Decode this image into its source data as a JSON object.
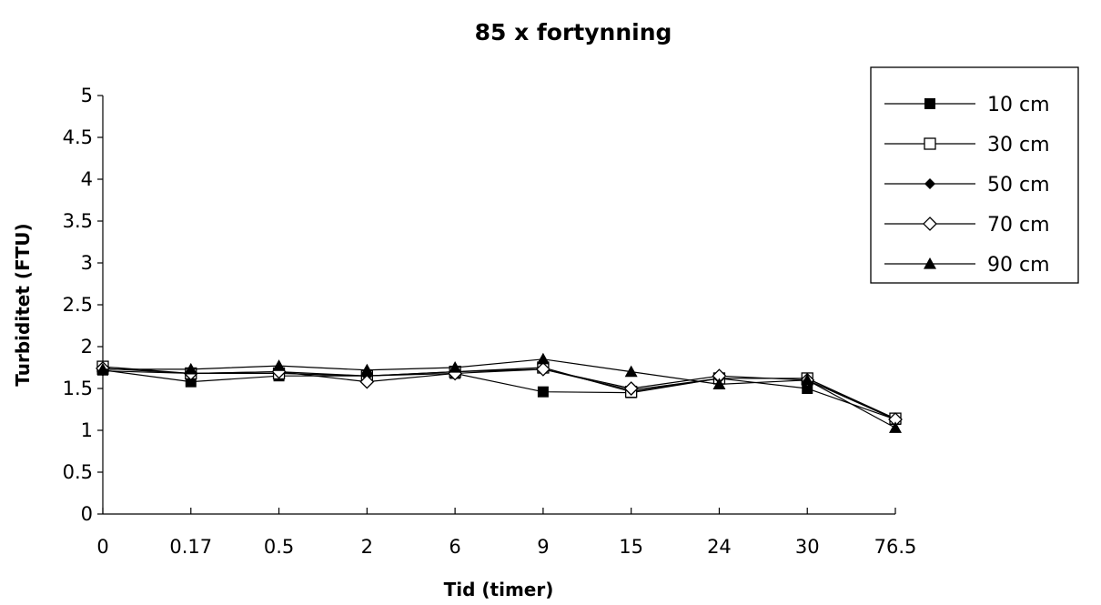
{
  "chart_data": {
    "type": "line",
    "title": "85 x fortynning",
    "xlabel": "Tid (timer)",
    "ylabel": "Turbiditet (FTU)",
    "categories": [
      "0",
      "0.17",
      "0.5",
      "2",
      "6",
      "9",
      "15",
      "24",
      "30",
      "76.5"
    ],
    "yticks": [
      "0",
      "0.5",
      "1",
      "1.5",
      "2",
      "2.5",
      "3",
      "3.5",
      "4",
      "4.5",
      "5"
    ],
    "ylim": [
      0,
      5
    ],
    "grid": false,
    "legend_position": "top-right",
    "series": [
      {
        "name": "10 cm",
        "marker": "square-filled",
        "values": [
          1.72,
          1.58,
          1.65,
          1.65,
          1.68,
          1.46,
          1.45,
          1.62,
          1.5,
          1.13
        ]
      },
      {
        "name": "30 cm",
        "marker": "square-open",
        "values": [
          1.76,
          1.68,
          1.68,
          1.65,
          1.7,
          1.75,
          1.46,
          1.62,
          1.62,
          1.14
        ]
      },
      {
        "name": "50 cm",
        "marker": "diamond-filled",
        "values": [
          1.71,
          1.68,
          1.7,
          1.65,
          1.7,
          1.73,
          1.48,
          1.62,
          1.62,
          1.13
        ]
      },
      {
        "name": "70 cm",
        "marker": "diamond-open",
        "values": [
          1.74,
          1.68,
          1.7,
          1.58,
          1.68,
          1.73,
          1.5,
          1.65,
          1.6,
          1.13
        ]
      },
      {
        "name": "90 cm",
        "marker": "triangle-filled",
        "values": [
          1.73,
          1.73,
          1.77,
          1.72,
          1.75,
          1.85,
          1.7,
          1.55,
          1.6,
          1.03
        ]
      }
    ]
  }
}
